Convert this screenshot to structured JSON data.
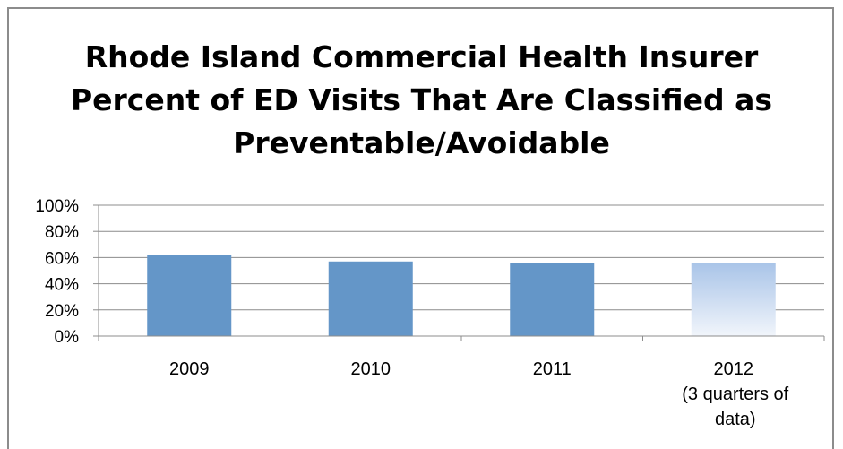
{
  "colors": {
    "bar": "#6496c8",
    "bar_partial_top": "#a9c4e8",
    "bar_partial_bottom": "#f1f5fb",
    "gridline": "#8c8c8c",
    "frame": "#8c8c8c",
    "text": "#000000"
  },
  "chart_data": {
    "type": "bar",
    "title": "Rhode Island Commercial Health Insurer Percent of ED Visits That Are Classified as Preventable/Avoidable",
    "title_lines": [
      "Rhode Island Commercial Health Insurer",
      "Percent of ED Visits That Are Classified as",
      "Preventable/Avoidable"
    ],
    "categories": [
      "2009",
      "2010",
      "2011",
      "2012\n(3 quarters of\ndata)"
    ],
    "category_lines": [
      [
        "2009"
      ],
      [
        "2010"
      ],
      [
        "2011"
      ],
      [
        "2012",
        "(3 quarters of",
        "data)"
      ]
    ],
    "values": [
      62,
      57,
      56,
      56
    ],
    "value_unit": "%",
    "partial_categories": [
      false,
      false,
      false,
      true
    ],
    "ylim": [
      0,
      100
    ],
    "yticks": [
      "0%",
      "20%",
      "40%",
      "60%",
      "80%",
      "100%"
    ],
    "ytick_values": [
      0,
      20,
      40,
      60,
      80,
      100
    ],
    "xlabel": "",
    "ylabel": "",
    "grid": true,
    "legend": "none"
  }
}
